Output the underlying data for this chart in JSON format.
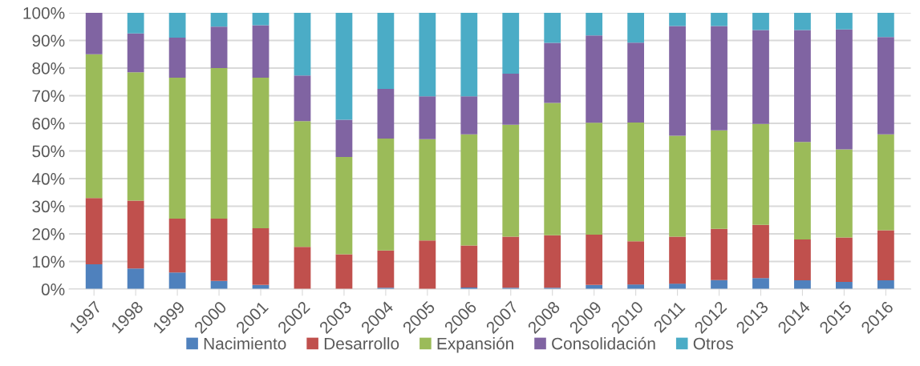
{
  "chart_data": {
    "type": "bar",
    "stacked": true,
    "grid": "y",
    "legend": "bottom",
    "categories": [
      "1997",
      "1998",
      "1999",
      "2000",
      "2001",
      "2002",
      "2003",
      "2004",
      "2005",
      "2006",
      "2007",
      "2008",
      "2009",
      "2010",
      "2011",
      "2012",
      "2013",
      "2014",
      "2015",
      "2016"
    ],
    "ylim": [
      0,
      100
    ],
    "yticks": [
      {
        "value": 0,
        "label": "0%"
      },
      {
        "value": 10,
        "label": "10%"
      },
      {
        "value": 20,
        "label": "20%"
      },
      {
        "value": 30,
        "label": "30%"
      },
      {
        "value": 40,
        "label": "40%"
      },
      {
        "value": 50,
        "label": "50%"
      },
      {
        "value": 60,
        "label": "60%"
      },
      {
        "value": 70,
        "label": "70%"
      },
      {
        "value": 80,
        "label": "80%"
      },
      {
        "value": 90,
        "label": "90%"
      },
      {
        "value": 100,
        "label": "100%"
      }
    ],
    "series": [
      {
        "name": "Nacimiento",
        "color": "#4f81bd",
        "values": [
          9,
          7.5,
          6,
          3,
          1.5,
          null,
          null,
          0.5,
          null,
          0.6,
          0.5,
          0.5,
          1.5,
          1.7,
          2,
          3.3,
          4,
          3.2,
          2.6,
          3.2
        ]
      },
      {
        "name": "Desarrollo",
        "color": "#c0504d",
        "values": [
          24,
          24.5,
          19.5,
          22.5,
          20.5,
          15.3,
          12.6,
          13.5,
          17.6,
          15.2,
          18.5,
          19,
          18.2,
          15.6,
          17,
          18.5,
          19.3,
          14.8,
          16.1,
          18.1
        ]
      },
      {
        "name": "Expansión",
        "color": "#9bbb59",
        "values": [
          52,
          46.5,
          51,
          54.5,
          54.5,
          45.5,
          35.2,
          40.5,
          36.7,
          40.2,
          40.5,
          47.9,
          40.5,
          43,
          36.5,
          35.7,
          36.5,
          35.3,
          31.9,
          34.7
        ]
      },
      {
        "name": "Consolidación",
        "color": "#8064a2",
        "values": [
          15,
          14,
          14.5,
          15,
          19,
          16.5,
          13.5,
          18,
          15.5,
          13.8,
          18.5,
          21.7,
          31.6,
          28.9,
          39.7,
          37.7,
          34,
          40.5,
          43.4,
          35.2
        ]
      },
      {
        "name": "Otros",
        "color": "#4bacc6",
        "values": [
          0,
          7.5,
          9,
          5,
          4.5,
          22.7,
          38.7,
          27.5,
          30.2,
          30.2,
          22,
          11,
          8.2,
          10.8,
          4.8,
          4.8,
          6.2,
          6.2,
          6,
          8.8
        ]
      }
    ]
  }
}
